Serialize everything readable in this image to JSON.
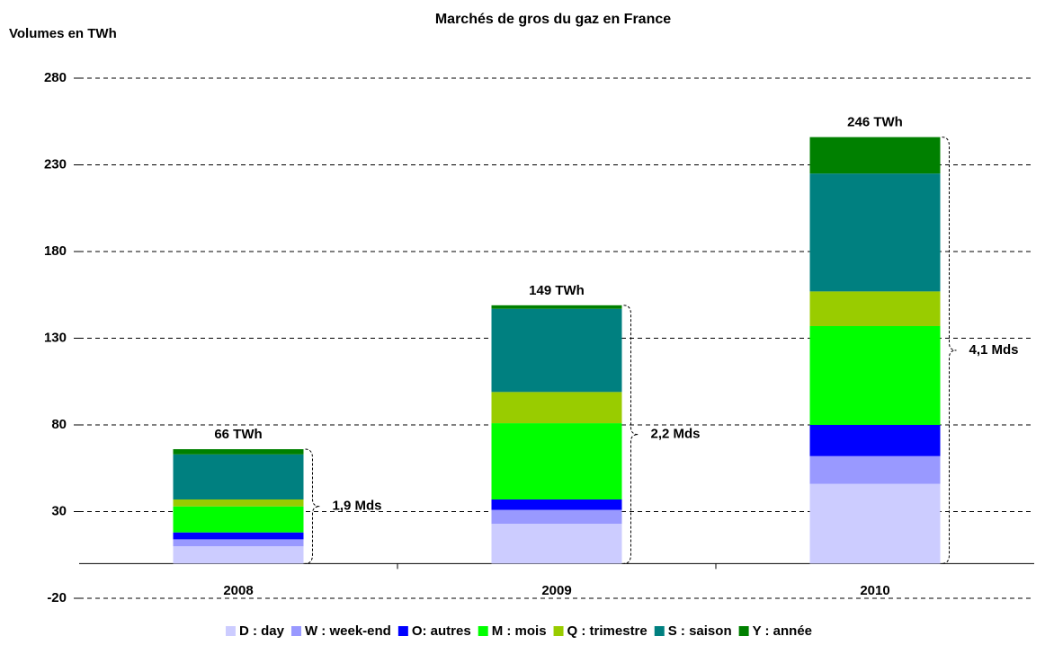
{
  "chart_data": {
    "type": "stacked_bar",
    "title": "Marchés de gros du gaz en France",
    "y_label": "Volumes en TWh",
    "categories": [
      "2008",
      "2009",
      "2010"
    ],
    "series": [
      {
        "name": "D : day",
        "color": "#ccccff",
        "values": [
          10,
          23,
          46
        ]
      },
      {
        "name": "W : week-end",
        "color": "#9999ff",
        "values": [
          4,
          8,
          16
        ]
      },
      {
        "name": "O: autres",
        "color": "#0000ff",
        "values": [
          4,
          6,
          18
        ]
      },
      {
        "name": "M : mois",
        "color": "#00ff00",
        "values": [
          15,
          44,
          57
        ]
      },
      {
        "name": "Q : trimestre",
        "color": "#99cc00",
        "values": [
          4,
          18,
          20
        ]
      },
      {
        "name": "S : saison",
        "color": "#008080",
        "values": [
          26,
          48,
          68
        ]
      },
      {
        "name": "Y : année",
        "color": "#008000",
        "values": [
          3,
          2,
          21
        ]
      }
    ],
    "total_labels": [
      "66 TWh",
      "149 TWh",
      "246 TWh"
    ],
    "bracket_labels": [
      "1,9 Mds",
      "2,2 Mds",
      "4,1 Mds"
    ],
    "ylim": [
      -20,
      280
    ],
    "yticks": [
      -20,
      30,
      80,
      130,
      180,
      230,
      280
    ],
    "grid": true,
    "legend": "bottom"
  }
}
